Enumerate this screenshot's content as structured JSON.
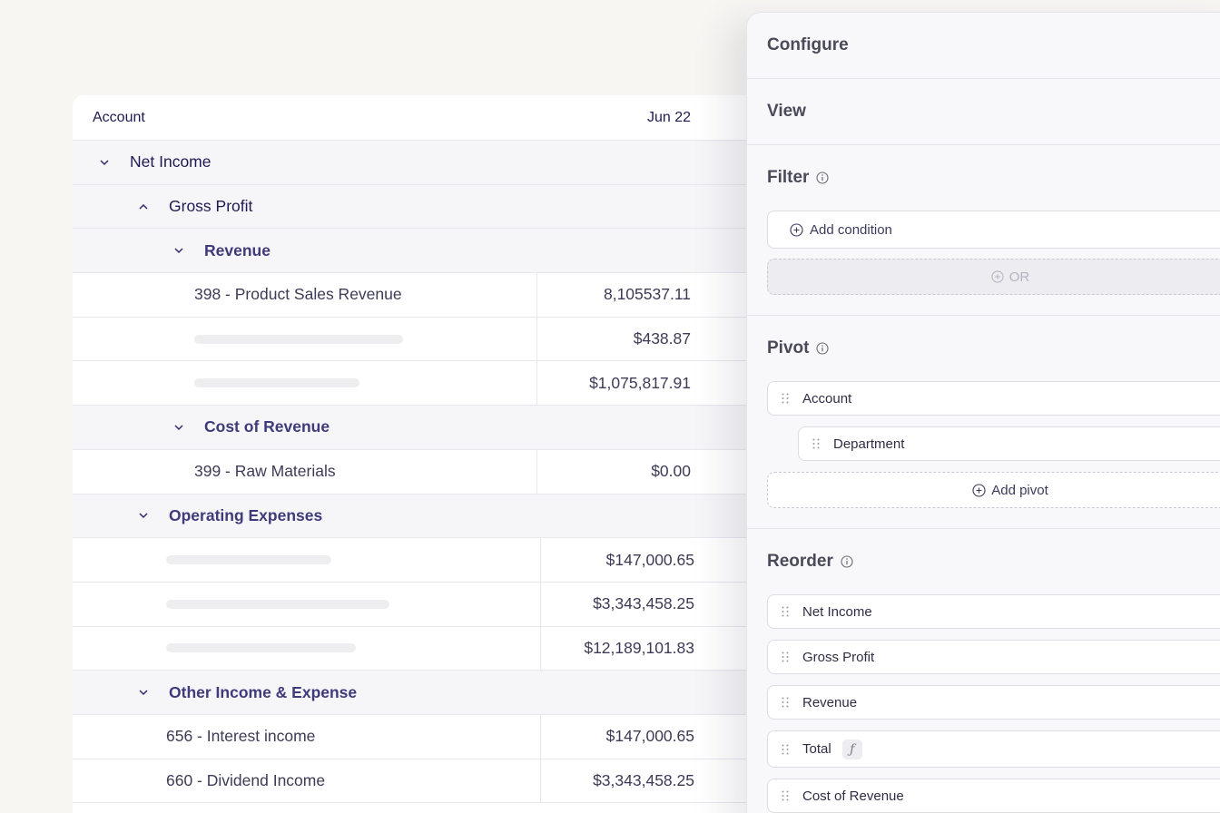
{
  "table": {
    "header": {
      "account": "Account",
      "month": "Jun 22"
    },
    "rows": [
      {
        "type": "group",
        "level": 0,
        "chevron": "down",
        "label": "Net Income"
      },
      {
        "type": "group",
        "level": 1,
        "chevron": "up",
        "label": "Gross Profit"
      },
      {
        "type": "group",
        "level": 2,
        "chevron": "down",
        "label": "Revenue"
      },
      {
        "type": "leaf",
        "label": "398 - Product Sales Revenue",
        "value": "8,105537.11"
      },
      {
        "type": "leaf",
        "label": "",
        "value": "$438.87"
      },
      {
        "type": "leaf",
        "label": "",
        "value": "$1,075,817.91"
      },
      {
        "type": "group",
        "level": 2,
        "chevron": "down",
        "label": "Cost of Revenue"
      },
      {
        "type": "leaf",
        "label": "399 - Raw Materials",
        "value": "$0.00"
      },
      {
        "type": "group",
        "level": 1,
        "chevron": "down",
        "label": "Operating Expenses"
      },
      {
        "type": "leaf",
        "label": "",
        "value": "$147,000.65"
      },
      {
        "type": "leaf",
        "label": "",
        "value": "$3,343,458.25"
      },
      {
        "type": "leaf",
        "label": "",
        "value": "$12,189,101.83"
      },
      {
        "type": "group",
        "level": 1,
        "chevron": "down",
        "label": "Other Income & Expense"
      },
      {
        "type": "leaf",
        "label": "656 - Interest income",
        "value": "$147,000.65"
      },
      {
        "type": "leaf",
        "label": "660 - Dividend Income",
        "value": "$3,343,458.25"
      }
    ]
  },
  "panel": {
    "configure": {
      "title": "Configure"
    },
    "view": {
      "title": "View"
    },
    "filter": {
      "title": "Filter",
      "add_condition": "Add condition",
      "or_label": "OR"
    },
    "pivot": {
      "title": "Pivot",
      "items": [
        "Account",
        "Department"
      ],
      "add_pivot": "Add pivot"
    },
    "reorder": {
      "title": "Reorder",
      "items": [
        "Net Income",
        "Gross Profit",
        "Revenue",
        "Total",
        "Cost of Revenue"
      ],
      "fx_symbol": "ƒ"
    }
  },
  "icons": {
    "chevron": "chevron-icon",
    "info": "info-icon",
    "plus": "plus-circle-icon",
    "grip": "drag-handle-icon",
    "close": "close-icon"
  },
  "colors": {
    "background": "#f7f6f3",
    "group_row": "#f6f6f9",
    "text_primary": "#1f1a52",
    "text_section": "#3f3a7a",
    "panel_bg": "#f8f8fa"
  }
}
